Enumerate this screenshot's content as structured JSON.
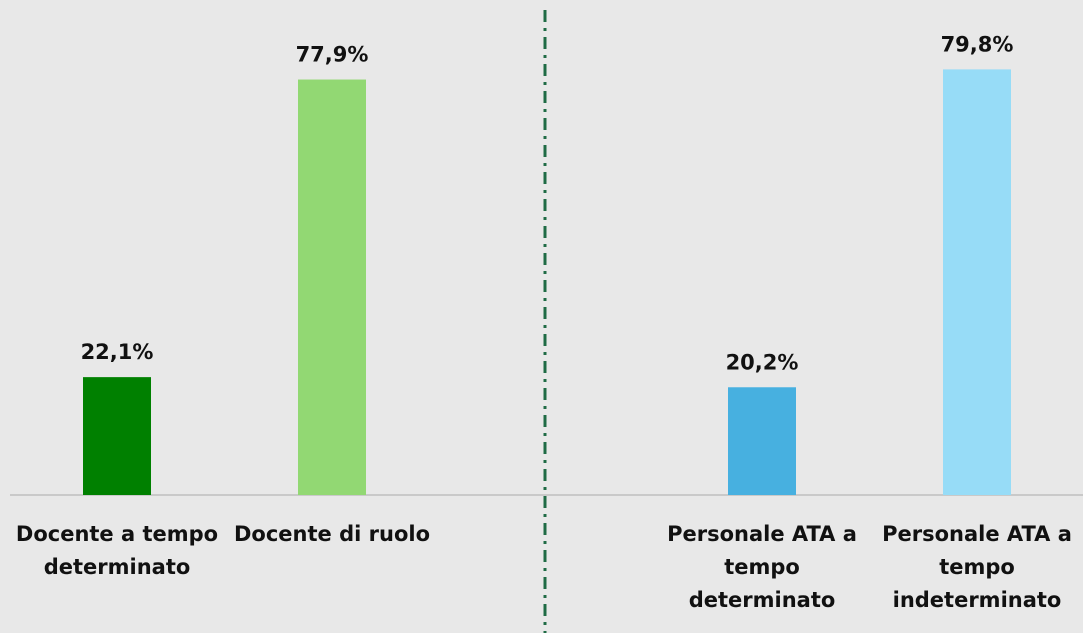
{
  "chart_data": {
    "type": "bar",
    "categories": [
      "Docente a tempo determinato",
      "Docente di ruolo",
      "Personale ATA a tempo determinato",
      "Personale ATA a tempo indeterminato"
    ],
    "values": [
      22.1,
      77.9,
      20.2,
      79.8
    ],
    "value_labels": [
      "22,1%",
      "77,9%",
      "20,2%",
      "79,8%"
    ],
    "colors": [
      "#008000",
      "#92d873",
      "#47b0e0",
      "#97dcf7"
    ],
    "ylim": [
      0,
      90
    ]
  }
}
